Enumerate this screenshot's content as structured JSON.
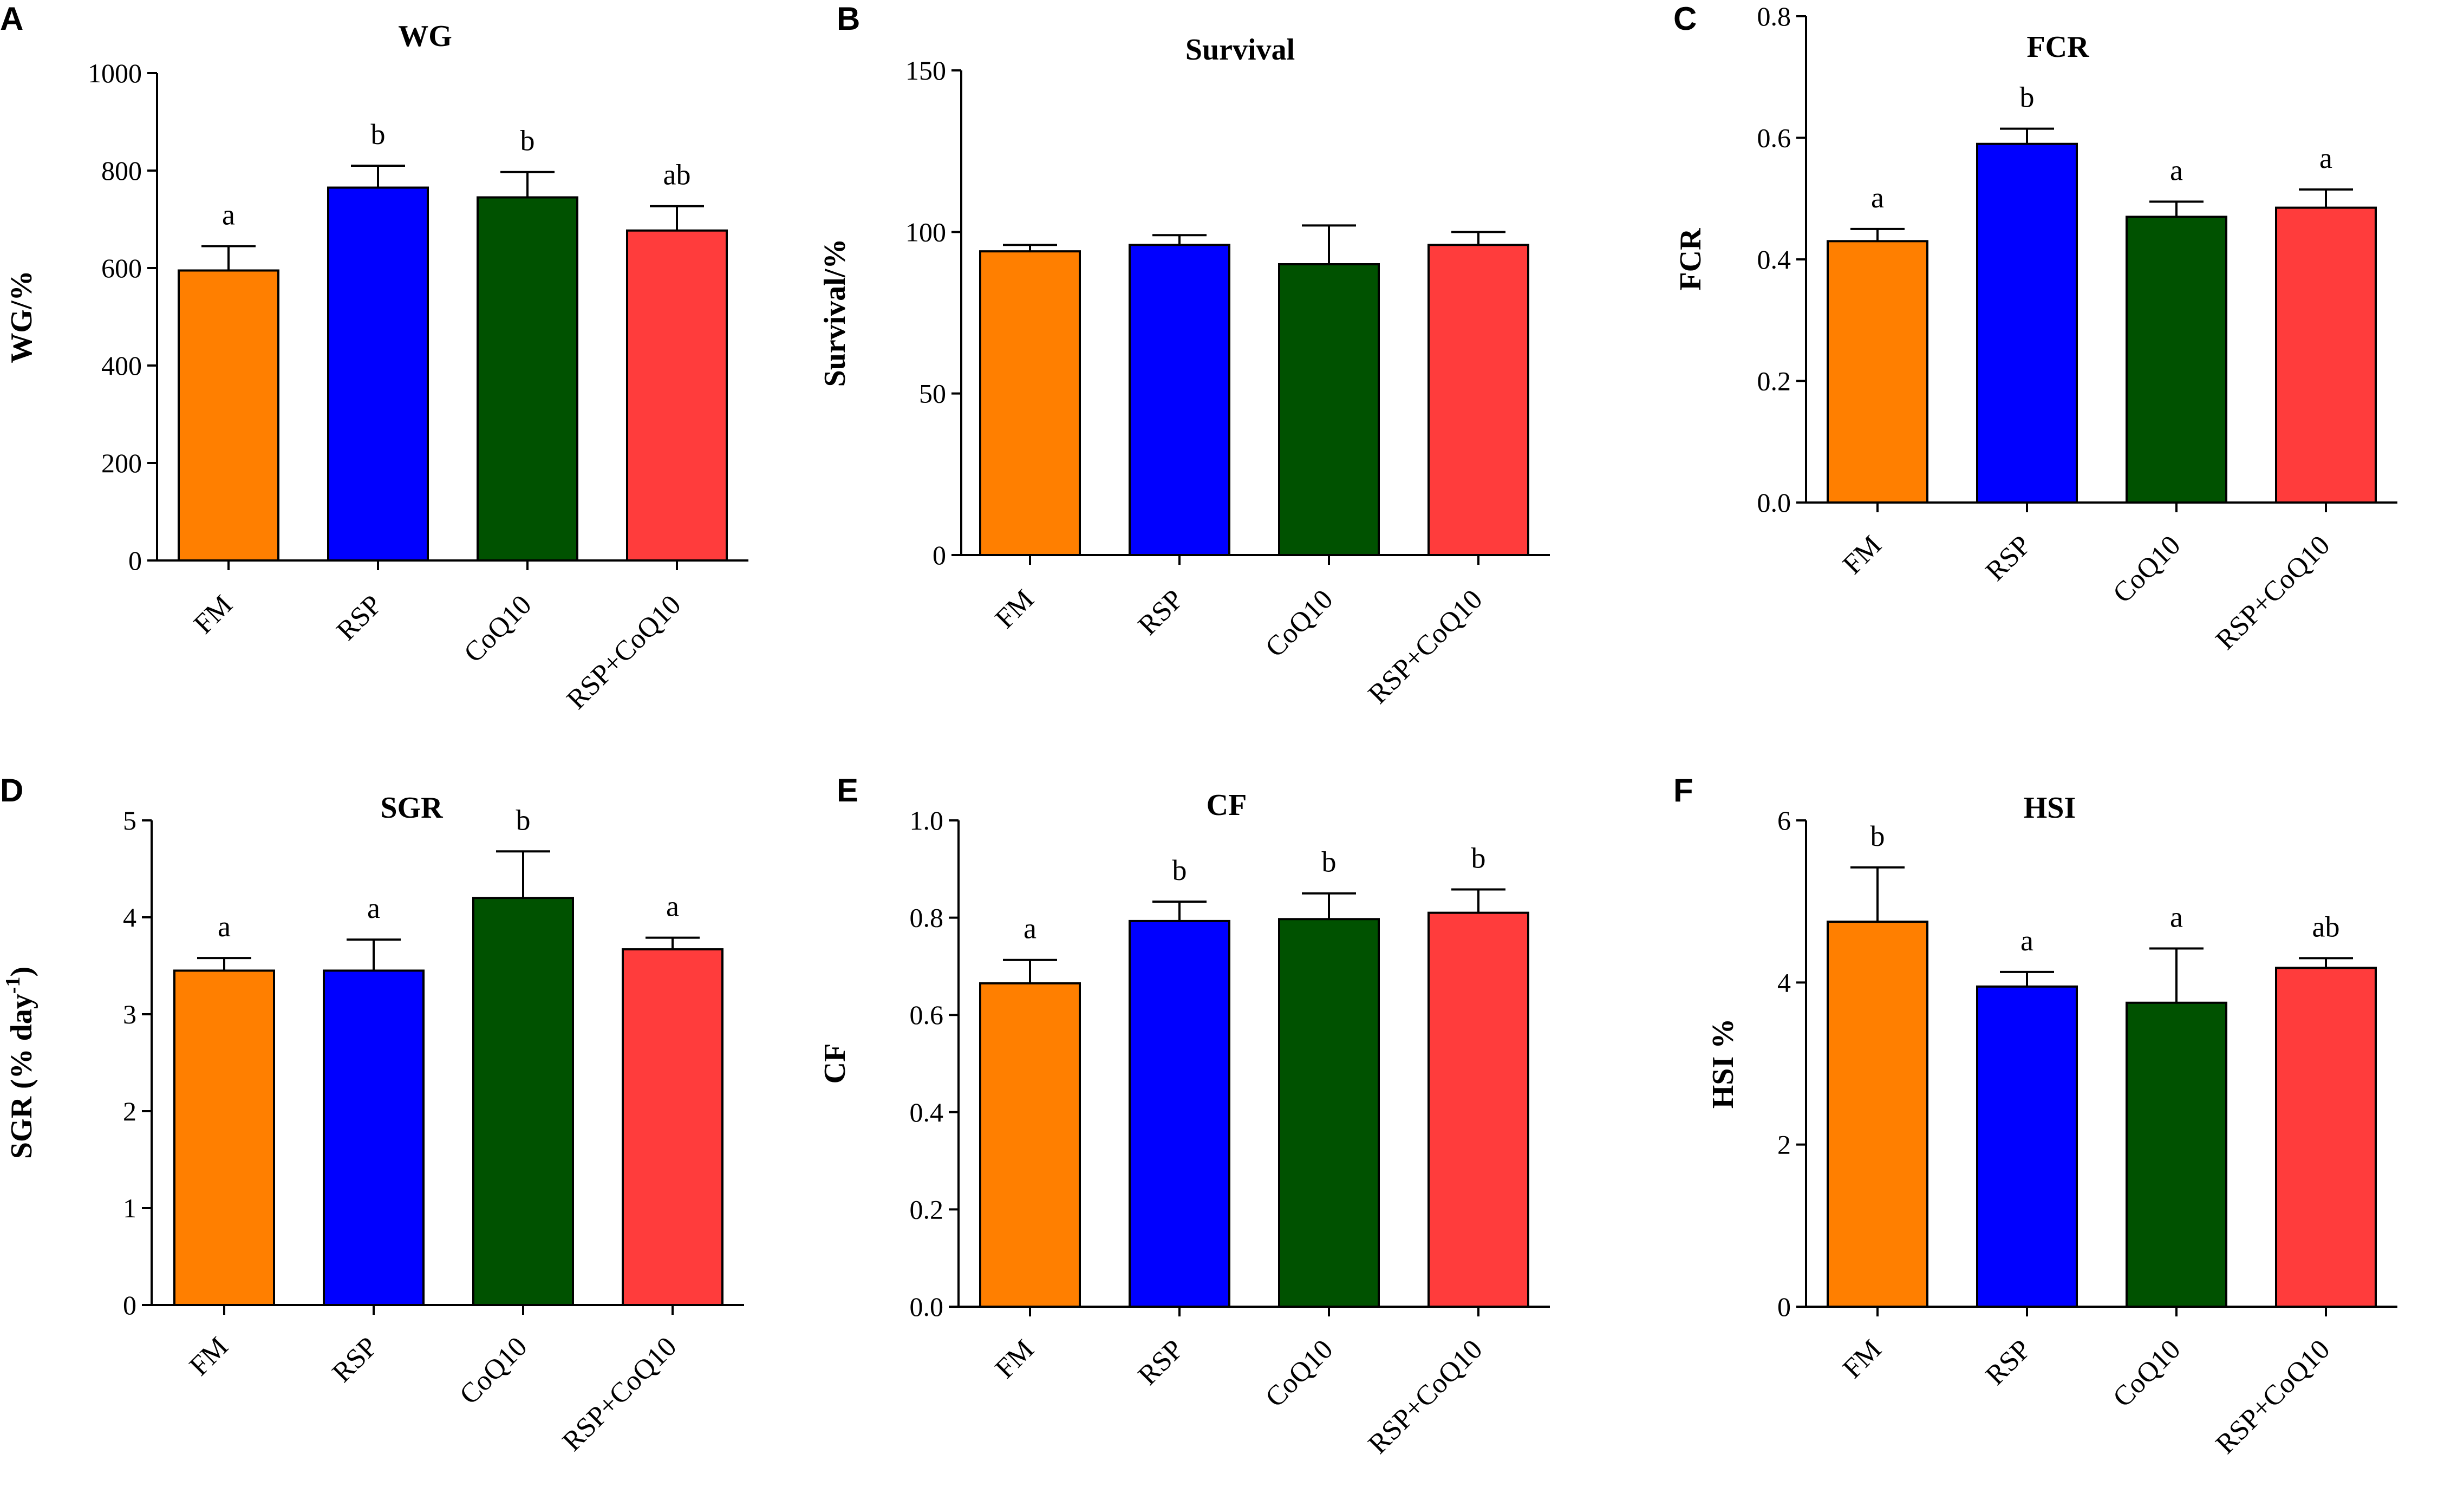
{
  "colors": {
    "FM": "#ff7f00",
    "RSP": "#0000ff",
    "CoQ10": "#005200",
    "RSP+CoQ10": "#ff3c3c"
  },
  "chart_data": [
    {
      "panel": "A",
      "type": "bar",
      "title": "WG",
      "ylabel": "WG/%",
      "ylabel_sup": "",
      "ylabel_tail": "",
      "categories": [
        "FM",
        "RSP",
        "CoQ10",
        "RSP+CoQ10"
      ],
      "values": [
        595,
        765,
        745,
        677
      ],
      "errors": [
        50,
        45,
        52,
        50
      ],
      "significance": [
        "a",
        "b",
        "b",
        "ab"
      ],
      "ylim": [
        0,
        1000
      ],
      "yticks": [
        "0",
        "200",
        "400",
        "600",
        "800",
        "1000"
      ]
    },
    {
      "panel": "B",
      "type": "bar",
      "title": "Survival",
      "ylabel": "Survival/%",
      "ylabel_sup": "",
      "ylabel_tail": "",
      "categories": [
        "FM",
        "RSP",
        "CoQ10",
        "RSP+CoQ10"
      ],
      "values": [
        94,
        96,
        90,
        96
      ],
      "errors": [
        2,
        3,
        12,
        4
      ],
      "significance": [
        "",
        "",
        "",
        ""
      ],
      "ylim": [
        0,
        150
      ],
      "yticks": [
        "0",
        "50",
        "100",
        "150"
      ]
    },
    {
      "panel": "C",
      "type": "bar",
      "title": "FCR",
      "ylabel": "FCR",
      "ylabel_sup": "",
      "ylabel_tail": "",
      "categories": [
        "FM",
        "RSP",
        "CoQ10",
        "RSP+CoQ10"
      ],
      "values": [
        0.43,
        0.59,
        0.47,
        0.485
      ],
      "errors": [
        0.02,
        0.025,
        0.025,
        0.03
      ],
      "significance": [
        "a",
        "b",
        "a",
        "a"
      ],
      "ylim": [
        0,
        0.8
      ],
      "yticks": [
        "0.0",
        "0.2",
        "0.4",
        "0.6",
        "0.8"
      ]
    },
    {
      "panel": "D",
      "type": "bar",
      "title": "SGR",
      "ylabel": "SGR (% day",
      "ylabel_sup": "-1",
      "ylabel_tail": ")",
      "categories": [
        "FM",
        "RSP",
        "CoQ10",
        "RSP+CoQ10"
      ],
      "values": [
        3.45,
        3.45,
        4.2,
        3.67
      ],
      "errors": [
        0.13,
        0.32,
        0.48,
        0.12
      ],
      "significance": [
        "a",
        "a",
        "b",
        "a"
      ],
      "ylim": [
        0,
        5
      ],
      "yticks": [
        "0",
        "1",
        "2",
        "3",
        "4",
        "5"
      ]
    },
    {
      "panel": "E",
      "type": "bar",
      "title": "CF",
      "ylabel": "CF",
      "ylabel_sup": "",
      "ylabel_tail": "",
      "categories": [
        "FM",
        "RSP",
        "CoQ10",
        "RSP+CoQ10"
      ],
      "values": [
        0.665,
        0.793,
        0.797,
        0.81
      ],
      "errors": [
        0.048,
        0.04,
        0.053,
        0.048
      ],
      "significance": [
        "a",
        "b",
        "b",
        "b"
      ],
      "ylim": [
        0,
        1.0
      ],
      "yticks": [
        "0.0",
        "0.2",
        "0.4",
        "0.6",
        "0.8",
        "1.0"
      ]
    },
    {
      "panel": "F",
      "type": "bar",
      "title": "HSI",
      "ylabel": "HSI %",
      "ylabel_sup": "",
      "ylabel_tail": "",
      "categories": [
        "FM",
        "RSP",
        "CoQ10",
        "RSP+CoQ10"
      ],
      "values": [
        4.75,
        3.95,
        3.75,
        4.18
      ],
      "errors": [
        0.67,
        0.18,
        0.67,
        0.12
      ],
      "significance": [
        "b",
        "a",
        "a",
        "ab"
      ],
      "ylim": [
        0,
        6
      ],
      "yticks": [
        "0",
        "2",
        "4",
        "6"
      ]
    }
  ]
}
